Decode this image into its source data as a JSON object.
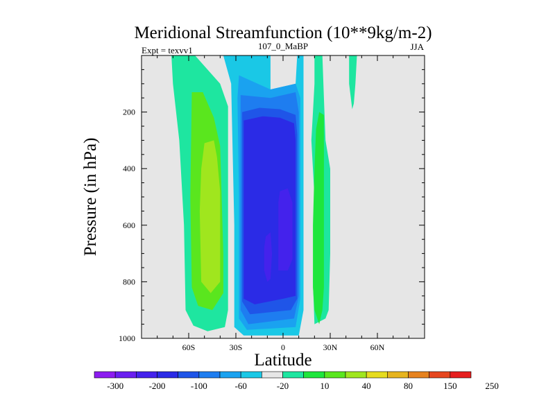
{
  "chart_data": {
    "type": "heatmap",
    "subtype": "filled-contour",
    "title": "Meridional Streamfunction (10**9kg/m-2)",
    "left_label": "Expt = texvv1",
    "center_label": "107_0_MaBP",
    "right_label": "JJA",
    "xlabel": "Latitude",
    "ylabel": "Pressure (in hPa)",
    "xlim": [
      -90,
      90
    ],
    "ylim": [
      1000,
      0
    ],
    "x_ticks": [
      {
        "value": -60,
        "label": "60S"
      },
      {
        "value": -30,
        "label": "30S"
      },
      {
        "value": 0,
        "label": "0"
      },
      {
        "value": 30,
        "label": "30N"
      },
      {
        "value": 60,
        "label": "60N"
      }
    ],
    "y_ticks": [
      {
        "value": 200,
        "label": "200"
      },
      {
        "value": 400,
        "label": "400"
      },
      {
        "value": 600,
        "label": "600"
      },
      {
        "value": 800,
        "label": "800"
      },
      {
        "value": 1000,
        "label": "1000"
      }
    ],
    "background_color": "#e6e6e6",
    "colorbar": {
      "colors": [
        "#8c1cf0",
        "#6a1ff0",
        "#4422ec",
        "#2b2be6",
        "#1f55e8",
        "#1e7df0",
        "#1aa2f0",
        "#1ac8e6",
        "#e6e6e6",
        "#1ee6a0",
        "#1ee63c",
        "#5ae61e",
        "#a0e61e",
        "#e6dc1e",
        "#e6b41e",
        "#e6821e",
        "#e6461e",
        "#e61e1e"
      ],
      "labels": [
        "-300",
        "-200",
        "-100",
        "-60",
        "-20",
        "10",
        "40",
        "80",
        "150",
        "250"
      ]
    },
    "regions": [
      {
        "name": "sh-cell-level1",
        "color": "#1ee6a0",
        "points": [
          [
            -71,
            0
          ],
          [
            -56,
            0
          ],
          [
            -40,
            100
          ],
          [
            -35,
            180
          ],
          [
            -35,
            900
          ],
          [
            -37,
            960
          ],
          [
            -48,
            975
          ],
          [
            -57,
            955
          ],
          [
            -62,
            900
          ],
          [
            -63,
            600
          ],
          [
            -66,
            300
          ],
          [
            -70,
            100
          ]
        ]
      },
      {
        "name": "sh-cell-level2",
        "color": "#5ae61e",
        "points": [
          [
            -58,
            130
          ],
          [
            -51,
            130
          ],
          [
            -44,
            220
          ],
          [
            -40,
            320
          ],
          [
            -38,
            700
          ],
          [
            -38,
            840
          ],
          [
            -45,
            900
          ],
          [
            -54,
            885
          ],
          [
            -58,
            820
          ],
          [
            -59,
            500
          ]
        ]
      },
      {
        "name": "sh-cell-level3",
        "color": "#a0e61e",
        "points": [
          [
            -50,
            310
          ],
          [
            -44,
            300
          ],
          [
            -42,
            360
          ],
          [
            -40,
            480
          ],
          [
            -40,
            800
          ],
          [
            -46,
            840
          ],
          [
            -52,
            800
          ],
          [
            -53,
            550
          ],
          [
            -52,
            400
          ]
        ]
      },
      {
        "name": "hadley-cell-level1",
        "color": "#1ac8e6",
        "points": [
          [
            -38,
            0
          ],
          [
            -8,
            0
          ],
          [
            -8,
            120
          ],
          [
            8,
            100
          ],
          [
            9,
            0
          ],
          [
            13,
            0
          ],
          [
            13,
            300
          ],
          [
            13,
            900
          ],
          [
            10,
            990
          ],
          [
            -25,
            990
          ],
          [
            -31,
            960
          ],
          [
            -31,
            600
          ],
          [
            -33,
            100
          ]
        ]
      },
      {
        "name": "hadley-cell-level2",
        "color": "#1aa2f0",
        "points": [
          [
            -28,
            70
          ],
          [
            -8,
            120
          ],
          [
            8,
            100
          ],
          [
            11,
            150
          ],
          [
            11,
            860
          ],
          [
            8,
            960
          ],
          [
            -23,
            970
          ],
          [
            -28,
            930
          ],
          [
            -28,
            500
          ],
          [
            -29,
            150
          ]
        ]
      },
      {
        "name": "hadley-cell-level3",
        "color": "#1e7df0",
        "points": [
          [
            -27,
            140
          ],
          [
            -8,
            150
          ],
          [
            8,
            130
          ],
          [
            10,
            200
          ],
          [
            10,
            850
          ],
          [
            7,
            930
          ],
          [
            -22,
            950
          ],
          [
            -27,
            900
          ],
          [
            -27,
            500
          ]
        ]
      },
      {
        "name": "hadley-cell-level4",
        "color": "#1f55e8",
        "points": [
          [
            -26,
            200
          ],
          [
            -15,
            185
          ],
          [
            -2,
            190
          ],
          [
            8,
            210
          ],
          [
            9,
            280
          ],
          [
            9,
            860
          ],
          [
            5,
            900
          ],
          [
            -21,
            915
          ],
          [
            -26,
            870
          ],
          [
            -26,
            500
          ]
        ]
      },
      {
        "name": "hadley-cell-level5",
        "color": "#2b2be6",
        "points": [
          [
            -25,
            230
          ],
          [
            -13,
            215
          ],
          [
            -2,
            220
          ],
          [
            7,
            240
          ],
          [
            8,
            300
          ],
          [
            8,
            850
          ],
          [
            0,
            860
          ],
          [
            -18,
            880
          ],
          [
            -25,
            860
          ],
          [
            -25,
            400
          ]
        ]
      },
      {
        "name": "hadley-cell-level6",
        "color": "#4422ec",
        "points": [
          [
            -2,
            480
          ],
          [
            3,
            470
          ],
          [
            6,
            520
          ],
          [
            6,
            720
          ],
          [
            3,
            760
          ],
          [
            -3,
            760
          ],
          [
            -3,
            640
          ],
          [
            -3,
            520
          ]
        ]
      },
      {
        "name": "hadley-cell-level6b",
        "color": "#4422ec",
        "points": [
          [
            -11,
            640
          ],
          [
            -8,
            625
          ],
          [
            -7,
            700
          ],
          [
            -8,
            790
          ],
          [
            -10,
            800
          ],
          [
            -12,
            760
          ],
          [
            -12,
            680
          ]
        ]
      },
      {
        "name": "nh-cell-level1",
        "color": "#1ee6a0",
        "points": [
          [
            20,
            0
          ],
          [
            25,
            0
          ],
          [
            26,
            150
          ],
          [
            27,
            300
          ],
          [
            30,
            400
          ],
          [
            30,
            700
          ],
          [
            29,
            900
          ],
          [
            27,
            930
          ],
          [
            20,
            950
          ],
          [
            19,
            800
          ],
          [
            20,
            500
          ],
          [
            18,
            300
          ],
          [
            19,
            200
          ],
          [
            20,
            100
          ]
        ]
      },
      {
        "name": "nh-cell-level2",
        "color": "#1ee63c",
        "points": [
          [
            23,
            200
          ],
          [
            26,
            210
          ],
          [
            26,
            400
          ],
          [
            26,
            600
          ],
          [
            26,
            820
          ],
          [
            25,
            900
          ],
          [
            23,
            950
          ],
          [
            20,
            900
          ],
          [
            19,
            820
          ],
          [
            19,
            600
          ],
          [
            20,
            400
          ],
          [
            21,
            260
          ]
        ]
      },
      {
        "name": "nh-upper-level1",
        "color": "#1ee6a0",
        "points": [
          [
            42,
            0
          ],
          [
            47,
            0
          ],
          [
            46,
            100
          ],
          [
            45,
            170
          ],
          [
            44,
            190
          ],
          [
            42,
            100
          ]
        ]
      }
    ]
  }
}
